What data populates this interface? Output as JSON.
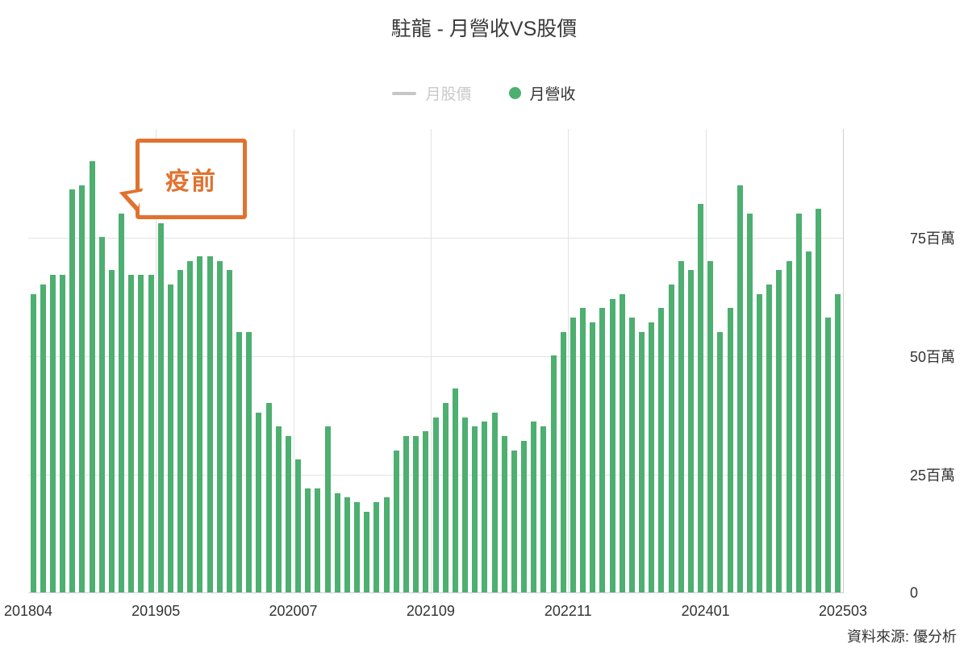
{
  "title": "駐龍 - 月營收VS股價",
  "legend": [
    {
      "label": "月股價",
      "type": "line",
      "color": "#c6c6c6",
      "text_color": "#c9c9c9",
      "active": false
    },
    {
      "label": "月營收",
      "type": "dot",
      "color": "#4daf70",
      "text_color": "#333333",
      "active": true
    }
  ],
  "annotation": {
    "text": "疫前",
    "color": "#e0722f"
  },
  "source": "資料來源: 優分析",
  "chart_data": {
    "type": "bar",
    "title": "駐龍 - 月營收VS股價",
    "unit": "百萬",
    "bar_color": "#4daf70",
    "grid": true,
    "legend_position": "top",
    "ylim": [
      0,
      98
    ],
    "y_ticks": [
      0,
      25,
      50,
      75
    ],
    "y_tick_labels": [
      "0",
      "25百萬",
      "50百萬",
      "75百萬"
    ],
    "x_tick_labels": [
      "201804",
      "201905",
      "202007",
      "202109",
      "202211",
      "202401",
      "202503"
    ],
    "x_tick_indices": [
      0,
      13,
      27,
      41,
      55,
      69,
      83
    ],
    "x": [
      "201804",
      "201805",
      "201806",
      "201807",
      "201808",
      "201809",
      "201810",
      "201811",
      "201812",
      "201901",
      "201902",
      "201903",
      "201904",
      "201905",
      "201906",
      "201907",
      "201908",
      "201909",
      "201910",
      "201911",
      "201912",
      "202001",
      "202002",
      "202003",
      "202004",
      "202005",
      "202006",
      "202007",
      "202008",
      "202009",
      "202010",
      "202011",
      "202012",
      "202101",
      "202102",
      "202103",
      "202104",
      "202105",
      "202106",
      "202107",
      "202108",
      "202109",
      "202110",
      "202111",
      "202112",
      "202201",
      "202202",
      "202203",
      "202204",
      "202205",
      "202206",
      "202207",
      "202208",
      "202209",
      "202210",
      "202211",
      "202212",
      "202301",
      "202302",
      "202303",
      "202304",
      "202305",
      "202306",
      "202307",
      "202308",
      "202309",
      "202310",
      "202311",
      "202312",
      "202401",
      "202402",
      "202403",
      "202404",
      "202405",
      "202406",
      "202407",
      "202408",
      "202409",
      "202410",
      "202411",
      "202412",
      "202501",
      "202502"
    ],
    "values": [
      63,
      65,
      67,
      67,
      85,
      86,
      91,
      75,
      68,
      80,
      67,
      67,
      67,
      78,
      65,
      68,
      70,
      71,
      71,
      70,
      68,
      55,
      55,
      38,
      40,
      35,
      33,
      28,
      22,
      22,
      35,
      21,
      20,
      19,
      17,
      19,
      20,
      30,
      33,
      33,
      34,
      37,
      40,
      43,
      37,
      35,
      36,
      38,
      33,
      30,
      32,
      36,
      35,
      50,
      55,
      58,
      60,
      57,
      60,
      62,
      63,
      58,
      55,
      57,
      60,
      65,
      70,
      68,
      82,
      70,
      55,
      60,
      86,
      80,
      63,
      65,
      68,
      70,
      80,
      72,
      81,
      58,
      63
    ]
  }
}
